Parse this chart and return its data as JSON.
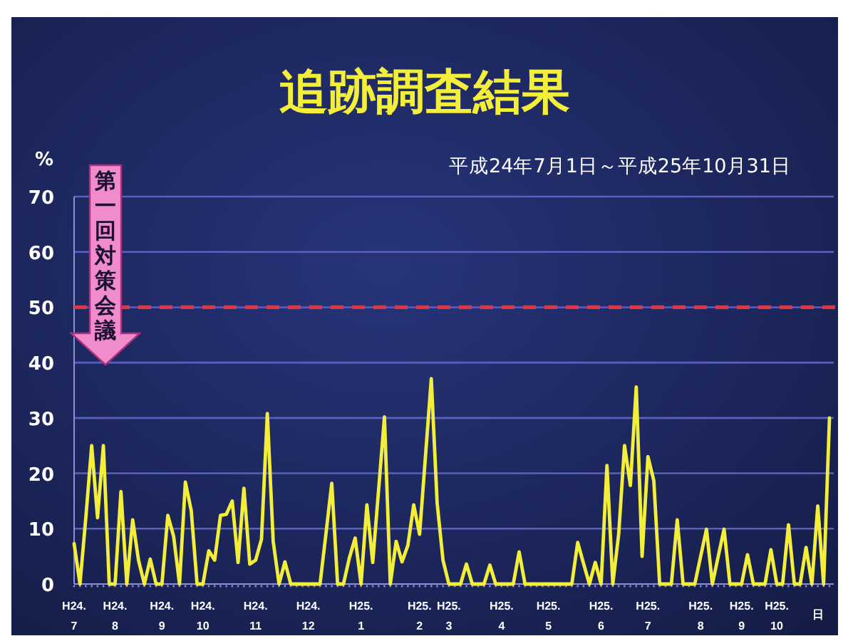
{
  "chart_data": {
    "type": "line",
    "title": "追跡調査結果",
    "subtitle": "平成24年7月1日～平成25年10月31日",
    "ylabel": "%",
    "annotations": [
      "第一回対策会議"
    ],
    "ref_lines": [
      {
        "axis": "y",
        "value": 50,
        "color": "#e8323c",
        "line_style": "dashed"
      }
    ],
    "ylim": [
      0,
      70
    ],
    "yticks": [
      0,
      10,
      20,
      30,
      40,
      50,
      60,
      70
    ],
    "categories": [
      "H24.7",
      null,
      null,
      null,
      null,
      null,
      null,
      "H24.8",
      null,
      null,
      null,
      null,
      null,
      null,
      null,
      "H24.9",
      null,
      null,
      null,
      null,
      null,
      null,
      "H24.10",
      null,
      null,
      null,
      null,
      null,
      null,
      null,
      null,
      "H24.11",
      null,
      null,
      null,
      null,
      null,
      null,
      null,
      null,
      "H24.12",
      null,
      null,
      null,
      null,
      null,
      null,
      null,
      null,
      "H25.1",
      null,
      null,
      null,
      null,
      null,
      null,
      null,
      null,
      null,
      "H25.2",
      null,
      null,
      null,
      null,
      "H25.3",
      null,
      null,
      null,
      null,
      null,
      null,
      null,
      null,
      "H25.4",
      null,
      null,
      null,
      null,
      null,
      null,
      null,
      "H25.5",
      null,
      null,
      null,
      null,
      null,
      null,
      null,
      null,
      "H25.6",
      null,
      null,
      null,
      null,
      null,
      null,
      null,
      "H25.7",
      null,
      null,
      null,
      null,
      null,
      null,
      null,
      null,
      "H25.8",
      null,
      null,
      null,
      null,
      null,
      null,
      "H25.9",
      null,
      null,
      null,
      null,
      null,
      "H25.10",
      null,
      null,
      null,
      null,
      null,
      null,
      "日",
      null,
      null
    ],
    "grid": "y",
    "marker": "none",
    "line_style": "solid",
    "series": [
      {
        "color": "#f2ee3a",
        "values": [
          7.3,
          0,
          12,
          25,
          12,
          25,
          0,
          0,
          16.7,
          0,
          11.6,
          4.3,
          0,
          4.5,
          0,
          0,
          12.4,
          8.6,
          0,
          18.4,
          13.3,
          0,
          0,
          6,
          4.3,
          12.4,
          12.6,
          15,
          3.9,
          17.3,
          3.6,
          4.3,
          8.1,
          30.8,
          7.7,
          0,
          4,
          0,
          0,
          0,
          0,
          0,
          0,
          9,
          18.2,
          0,
          0,
          4.7,
          8.3,
          0,
          14.3,
          3.9,
          17,
          30.2,
          0,
          7.7,
          4,
          7,
          14.3,
          9,
          23,
          37.1,
          14.6,
          4.3,
          0,
          0,
          0,
          3.6,
          0,
          0,
          0,
          3.4,
          0,
          0,
          0,
          0,
          5.8,
          0,
          0,
          0,
          0,
          0,
          0,
          0,
          0,
          0,
          7.5,
          3.7,
          0,
          3.9,
          0,
          21.4,
          0,
          9,
          25,
          17.8,
          35.6,
          5,
          23,
          18.7,
          0,
          0,
          0,
          11.6,
          0,
          0,
          0,
          5,
          9.9,
          0,
          5,
          9.9,
          0,
          0,
          0,
          5.3,
          0,
          0,
          0,
          6.2,
          0,
          0,
          10.7,
          0,
          0,
          6.6,
          0,
          14.1,
          0,
          30
        ]
      }
    ]
  }
}
